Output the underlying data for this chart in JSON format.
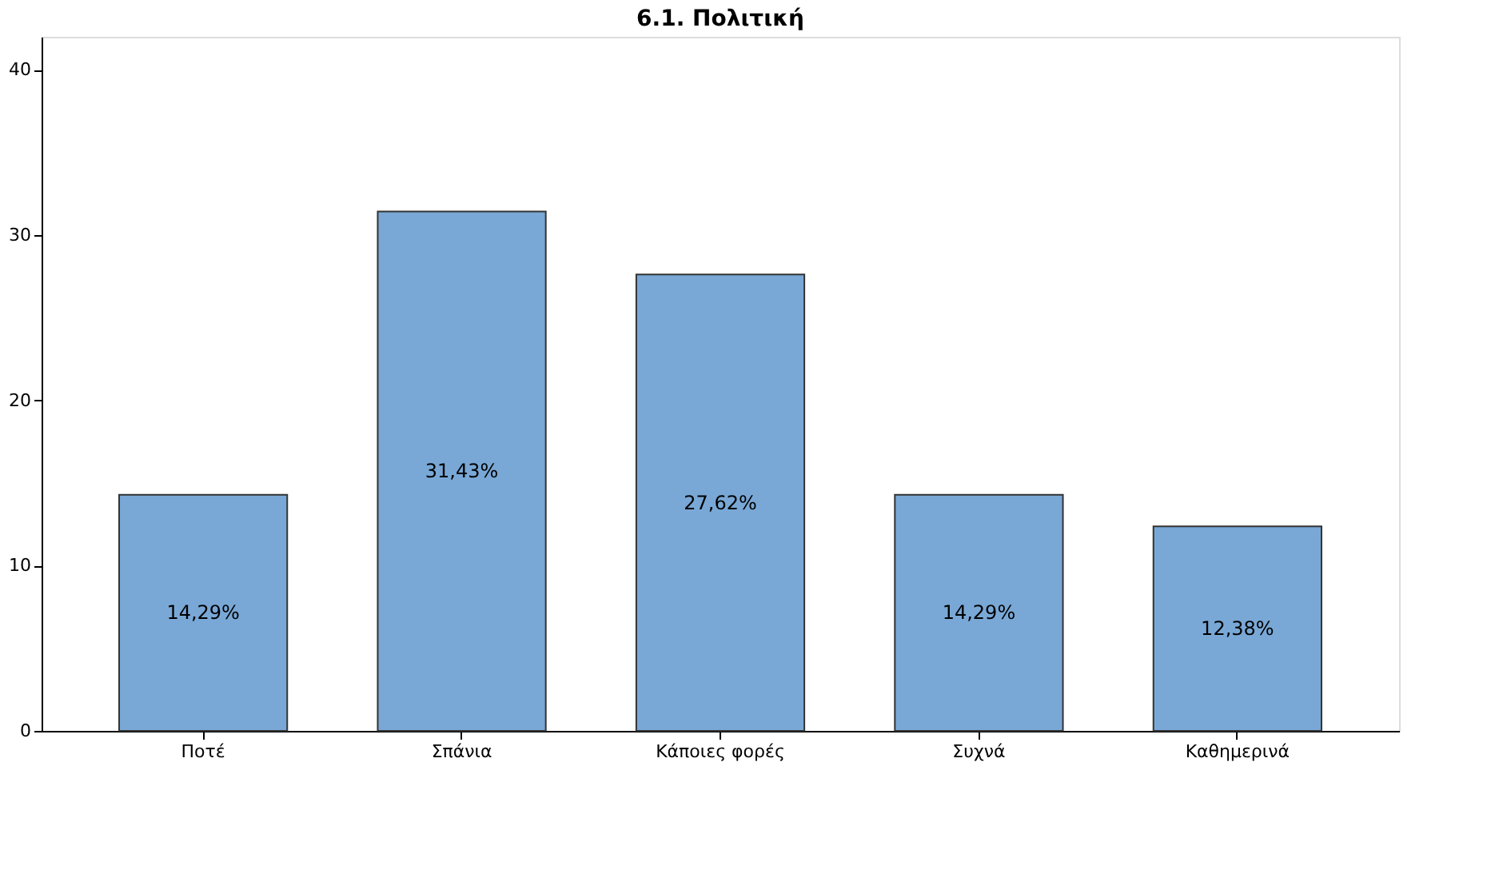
{
  "chart_data": {
    "type": "bar",
    "title": "6.1. Πολιτική",
    "categories": [
      "Ποτέ",
      "Σπάνια",
      "Κάποιες φορές",
      "Συχνά",
      "Καθημερινά"
    ],
    "values": [
      14.29,
      31.43,
      27.62,
      14.29,
      12.38
    ],
    "value_labels": [
      "14,29%",
      "31,43%",
      "27,62%",
      "14,29%",
      "12,38%"
    ],
    "color": "#79a8d6",
    "ylim": [
      0,
      42
    ],
    "yticks": [
      0,
      10,
      20,
      30,
      40
    ],
    "grid": false
  }
}
